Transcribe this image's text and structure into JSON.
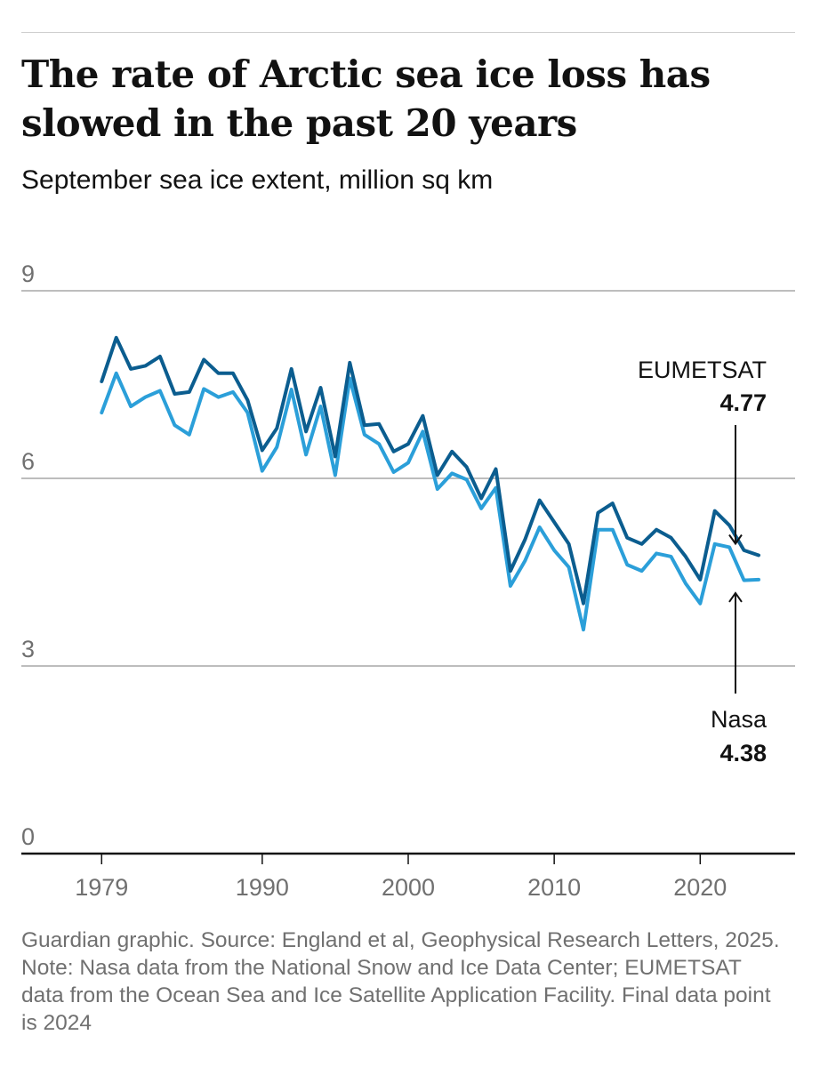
{
  "header": {
    "title": "The rate of Arctic sea ice loss has slowed in the past 20 years",
    "subtitle": "September sea ice extent, million sq km"
  },
  "footer": {
    "source": "Guardian graphic. Source: England et al, Geophysical Research Letters, 2025. Note: Nasa data from the National Snow and Ice Data Center; EUMETSAT data from the Ocean Sea and Ice Satellite Application Facility. Final data point is 2024"
  },
  "colors": {
    "eumetsat": "#0b5d8f",
    "nasa": "#2b9fd9",
    "grid": "#bdbdbd",
    "axis": "#121212",
    "tick_text": "#707070"
  },
  "chart_data": {
    "type": "line",
    "title": "The rate of Arctic sea ice loss has slowed in the past 20 years",
    "subtitle": "September sea ice extent, million sq km",
    "xlabel": "",
    "ylabel": "",
    "xlim": [
      1973.5,
      2026.5
    ],
    "ylim": [
      0,
      9
    ],
    "yticks": [
      0,
      3,
      6,
      9
    ],
    "xticks": [
      1979,
      1990,
      2000,
      2010,
      2020
    ],
    "grid": true,
    "x": [
      1979,
      1980,
      1981,
      1982,
      1983,
      1984,
      1985,
      1986,
      1987,
      1988,
      1989,
      1990,
      1991,
      1992,
      1993,
      1994,
      1995,
      1996,
      1997,
      1998,
      1999,
      2000,
      2001,
      2002,
      2003,
      2004,
      2005,
      2006,
      2007,
      2008,
      2009,
      2010,
      2011,
      2012,
      2013,
      2014,
      2015,
      2016,
      2017,
      2018,
      2019,
      2020,
      2021,
      2022,
      2023,
      2024
    ],
    "series": [
      {
        "name": "EUMETSAT",
        "values": [
          7.55,
          8.25,
          7.75,
          7.8,
          7.95,
          7.35,
          7.38,
          7.9,
          7.68,
          7.68,
          7.25,
          6.45,
          6.8,
          7.75,
          6.75,
          7.45,
          6.35,
          7.85,
          6.85,
          6.87,
          6.43,
          6.55,
          7.0,
          6.05,
          6.43,
          6.18,
          5.68,
          6.15,
          4.52,
          5.02,
          5.65,
          5.3,
          4.95,
          4.0,
          5.45,
          5.6,
          5.05,
          4.95,
          5.18,
          5.05,
          4.75,
          4.38,
          5.48,
          5.25,
          4.85,
          4.77
        ],
        "label": "EUMETSAT",
        "end_label": "4.77"
      },
      {
        "name": "Nasa",
        "values": [
          7.05,
          7.68,
          7.15,
          7.3,
          7.4,
          6.85,
          6.7,
          7.43,
          7.3,
          7.38,
          7.05,
          6.12,
          6.5,
          7.42,
          6.38,
          7.15,
          6.05,
          7.6,
          6.7,
          6.55,
          6.1,
          6.25,
          6.75,
          5.83,
          6.08,
          5.98,
          5.52,
          5.85,
          4.28,
          4.68,
          5.22,
          4.85,
          4.58,
          3.58,
          5.18,
          5.18,
          4.62,
          4.52,
          4.8,
          4.75,
          4.32,
          4.0,
          4.95,
          4.9,
          4.37,
          4.38
        ],
        "label": "Nasa",
        "end_label": "4.38"
      }
    ]
  }
}
